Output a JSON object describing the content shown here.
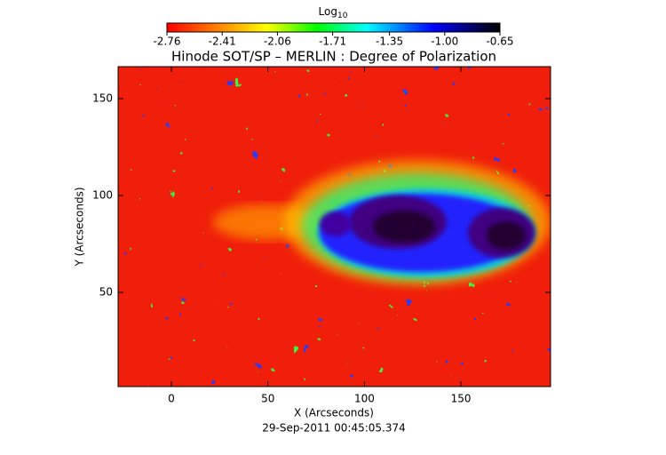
{
  "chart_data": {
    "type": "heatmap",
    "title": "Hinode SOT/SP – MERLIN : Degree of Polarization",
    "colorbar_label": {
      "base": "Log",
      "subscript": "10"
    },
    "colorbar_lim": [
      -2.76,
      -0.65
    ],
    "colorbar_ticks": [
      -2.76,
      -2.41,
      -2.06,
      -1.71,
      -1.35,
      {
        "value": -1,
        "label": "-1.00"
      },
      -0.65
    ],
    "x_label": "X (Arcseconds)",
    "y_label": "Y (Arcseconds)",
    "xlim": [
      -27.6,
      196.4
    ],
    "ylim": [
      1.4,
      166.5
    ],
    "xticks": [
      0,
      50,
      100,
      150
    ],
    "yticks": [
      50,
      100,
      150
    ],
    "date": "29-Sep-2011 00:45:05.374"
  }
}
